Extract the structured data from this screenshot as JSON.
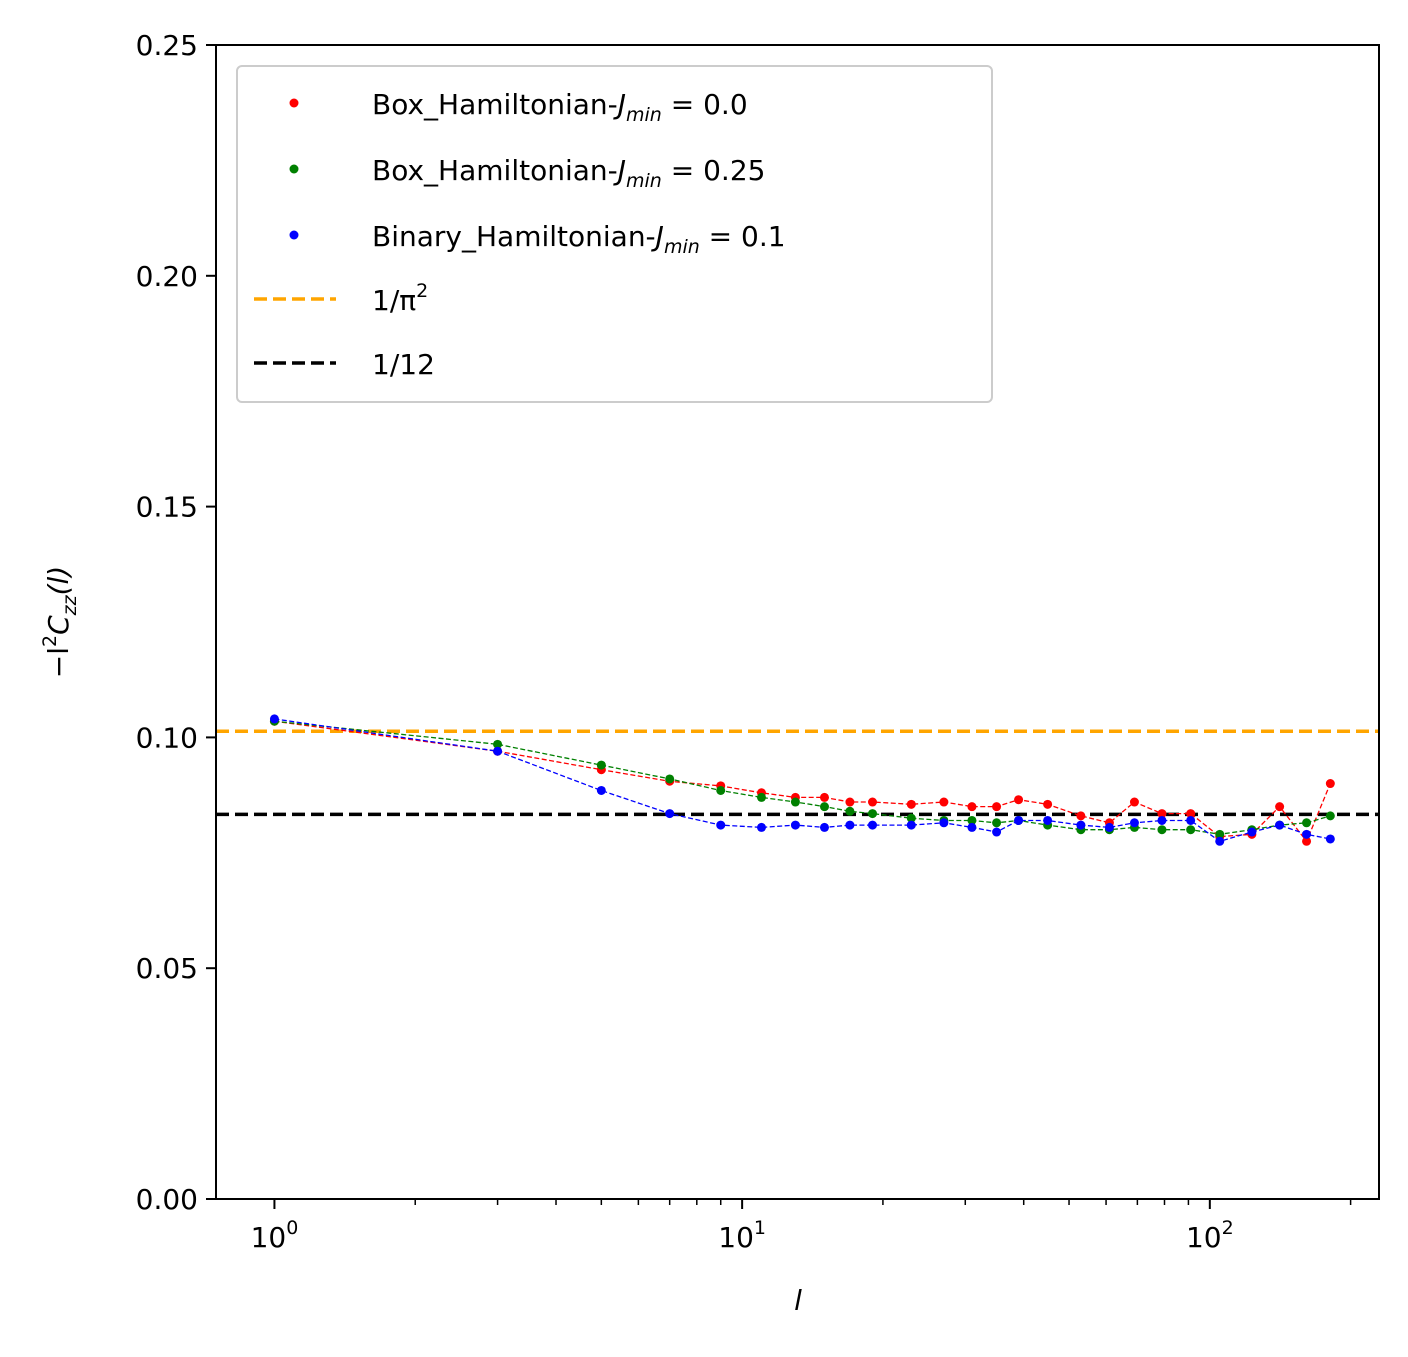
{
  "chart_data": {
    "type": "scatter",
    "xscale": "log",
    "xlim": [
      0.75,
      230
    ],
    "ylim": [
      0.0,
      0.25
    ],
    "grid": false,
    "legend_position": "top-left",
    "xlabel": "l",
    "ylabel": {
      "prefix": "−l",
      "sup": "2",
      "c": "C",
      "sub": "zz",
      "suffix": "(l)"
    },
    "x_ticks": [
      {
        "value": 1,
        "base": "10",
        "exp": "0"
      },
      {
        "value": 10,
        "base": "10",
        "exp": "1"
      },
      {
        "value": 100,
        "base": "10",
        "exp": "2"
      }
    ],
    "x_minor_ticks": [
      2,
      3,
      4,
      5,
      6,
      7,
      8,
      9,
      20,
      30,
      40,
      50,
      60,
      70,
      80,
      90,
      200
    ],
    "y_ticks": [
      {
        "value": 0.0,
        "label": "0.00"
      },
      {
        "value": 0.05,
        "label": "0.05"
      },
      {
        "value": 0.1,
        "label": "0.10"
      },
      {
        "value": 0.15,
        "label": "0.15"
      },
      {
        "value": 0.2,
        "label": "0.20"
      },
      {
        "value": 0.25,
        "label": "0.25"
      }
    ],
    "series": [
      {
        "id": "red",
        "name": {
          "prefix": "Box_Hamiltonian-",
          "j": "J",
          "sub": "min",
          "suffix": " = 0.0"
        },
        "color": "#ff0000",
        "x": [
          1,
          3,
          5,
          7,
          9,
          11,
          13,
          15,
          17,
          19,
          23,
          27,
          31,
          35,
          39,
          45,
          53,
          61,
          69,
          79,
          91,
          105,
          123,
          141,
          161,
          181
        ],
        "y": [
          0.1035,
          0.097,
          0.093,
          0.0905,
          0.0895,
          0.088,
          0.087,
          0.087,
          0.086,
          0.086,
          0.0855,
          0.086,
          0.085,
          0.085,
          0.0865,
          0.0855,
          0.083,
          0.0815,
          0.086,
          0.0835,
          0.0835,
          0.0785,
          0.079,
          0.085,
          0.0775,
          0.09
        ]
      },
      {
        "id": "green",
        "name": {
          "prefix": "Box_Hamiltonian-",
          "j": "J",
          "sub": "min",
          "suffix": " = 0.25"
        },
        "color": "#008000",
        "x": [
          1,
          3,
          5,
          7,
          9,
          11,
          13,
          15,
          17,
          19,
          23,
          27,
          31,
          35,
          39,
          45,
          53,
          61,
          69,
          79,
          91,
          105,
          123,
          141,
          161,
          181
        ],
        "y": [
          0.1035,
          0.0985,
          0.094,
          0.091,
          0.0885,
          0.087,
          0.086,
          0.085,
          0.084,
          0.0835,
          0.0825,
          0.082,
          0.082,
          0.0815,
          0.082,
          0.081,
          0.08,
          0.08,
          0.0805,
          0.08,
          0.08,
          0.079,
          0.08,
          0.081,
          0.0815,
          0.083
        ]
      },
      {
        "id": "blue",
        "name": {
          "prefix": "Binary_Hamiltonian-",
          "j": "J",
          "sub": "min",
          "suffix": " = 0.1"
        },
        "color": "#0000ff",
        "x": [
          1,
          3,
          5,
          7,
          9,
          11,
          13,
          15,
          17,
          19,
          23,
          27,
          31,
          35,
          39,
          45,
          53,
          61,
          69,
          79,
          91,
          105,
          123,
          141,
          161,
          181
        ],
        "y": [
          0.104,
          0.097,
          0.0885,
          0.0835,
          0.081,
          0.0805,
          0.081,
          0.0805,
          0.081,
          0.081,
          0.081,
          0.0815,
          0.0805,
          0.0795,
          0.082,
          0.082,
          0.081,
          0.0805,
          0.0815,
          0.082,
          0.082,
          0.0775,
          0.0795,
          0.081,
          0.079,
          0.078
        ]
      }
    ],
    "reference_lines": [
      {
        "id": "pi",
        "value": 0.101321,
        "color": "#ffa500",
        "label": {
          "text": "1/π",
          "sup": "2"
        }
      },
      {
        "id": "twelve",
        "value": 0.083333,
        "color": "#000000",
        "label": {
          "text": "1/12",
          "sup": ""
        }
      }
    ]
  }
}
